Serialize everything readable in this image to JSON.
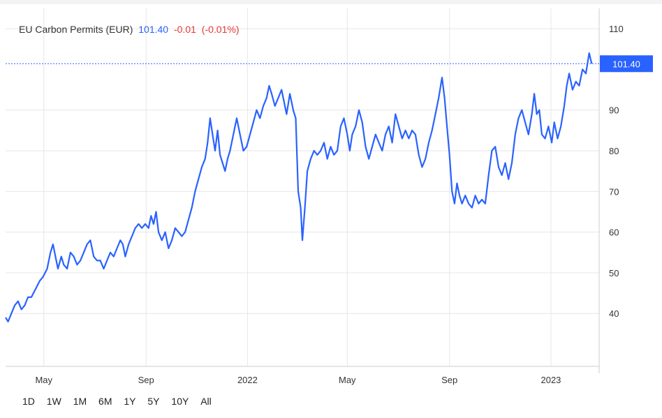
{
  "header": {
    "name": "EU Carbon Permits (EUR)",
    "price": "101.40",
    "change": "-0.01",
    "change_pct": "(-0.01%)"
  },
  "range_buttons": [
    "1D",
    "1W",
    "1M",
    "6M",
    "1Y",
    "5Y",
    "10Y",
    "All"
  ],
  "colors": {
    "line": "#2962ff",
    "price_tag_bg": "#2962ff",
    "change_negative": "#e53935",
    "grid": "#e6e6e6",
    "axis_text": "#333333"
  },
  "chart_data": {
    "type": "line",
    "title": "EU Carbon Permits (EUR)",
    "last_value": 101.4,
    "last_value_label": "101.40",
    "y_ticks": [
      40,
      50,
      60,
      70,
      80,
      90,
      110
    ],
    "y_tick_labels": [
      "40",
      "50",
      "60",
      "70",
      "80",
      "90",
      "110"
    ],
    "ylim": [
      27,
      115
    ],
    "xlim": [
      "2021-03-16",
      "2023-02-28"
    ],
    "x_ticks": [
      "2021-05-01",
      "2021-09-01",
      "2022-01-01",
      "2022-05-01",
      "2022-09-01",
      "2023-01-01"
    ],
    "x_tick_labels": [
      "May",
      "Sep",
      "2022",
      "May",
      "Sep",
      "2023"
    ],
    "grid": true,
    "series": [
      {
        "points": [
          [
            "2021-03-16",
            39
          ],
          [
            "2021-03-19",
            38
          ],
          [
            "2021-03-23",
            40
          ],
          [
            "2021-03-27",
            42
          ],
          [
            "2021-03-31",
            43
          ],
          [
            "2021-04-04",
            41
          ],
          [
            "2021-04-08",
            42
          ],
          [
            "2021-04-12",
            44
          ],
          [
            "2021-04-16",
            44
          ],
          [
            "2021-04-21",
            46
          ],
          [
            "2021-04-26",
            48
          ],
          [
            "2021-04-30",
            49
          ],
          [
            "2021-05-05",
            51
          ],
          [
            "2021-05-09",
            55
          ],
          [
            "2021-05-12",
            57
          ],
          [
            "2021-05-15",
            54
          ],
          [
            "2021-05-18",
            51
          ],
          [
            "2021-05-22",
            54
          ],
          [
            "2021-05-25",
            52
          ],
          [
            "2021-05-29",
            51
          ],
          [
            "2021-06-02",
            55
          ],
          [
            "2021-06-06",
            54
          ],
          [
            "2021-06-10",
            52
          ],
          [
            "2021-06-14",
            53
          ],
          [
            "2021-06-18",
            55
          ],
          [
            "2021-06-22",
            57
          ],
          [
            "2021-06-26",
            58
          ],
          [
            "2021-06-30",
            54
          ],
          [
            "2021-07-04",
            53
          ],
          [
            "2021-07-08",
            53
          ],
          [
            "2021-07-12",
            51
          ],
          [
            "2021-07-16",
            53
          ],
          [
            "2021-07-20",
            55
          ],
          [
            "2021-07-24",
            54
          ],
          [
            "2021-07-28",
            56
          ],
          [
            "2021-08-01",
            58
          ],
          [
            "2021-08-04",
            57
          ],
          [
            "2021-08-07",
            54
          ],
          [
            "2021-08-11",
            57
          ],
          [
            "2021-08-15",
            59
          ],
          [
            "2021-08-19",
            61
          ],
          [
            "2021-08-23",
            62
          ],
          [
            "2021-08-27",
            61
          ],
          [
            "2021-08-31",
            62
          ],
          [
            "2021-09-04",
            61
          ],
          [
            "2021-09-07",
            64
          ],
          [
            "2021-09-10",
            62
          ],
          [
            "2021-09-13",
            65
          ],
          [
            "2021-09-16",
            60
          ],
          [
            "2021-09-20",
            58
          ],
          [
            "2021-09-24",
            60
          ],
          [
            "2021-09-28",
            56
          ],
          [
            "2021-10-02",
            58
          ],
          [
            "2021-10-06",
            61
          ],
          [
            "2021-10-10",
            60
          ],
          [
            "2021-10-14",
            59
          ],
          [
            "2021-10-18",
            60
          ],
          [
            "2021-10-22",
            63
          ],
          [
            "2021-10-26",
            66
          ],
          [
            "2021-10-30",
            70
          ],
          [
            "2021-11-03",
            73
          ],
          [
            "2021-11-07",
            76
          ],
          [
            "2021-11-11",
            78
          ],
          [
            "2021-11-14",
            82
          ],
          [
            "2021-11-17",
            88
          ],
          [
            "2021-11-20",
            84
          ],
          [
            "2021-11-23",
            80
          ],
          [
            "2021-11-26",
            85
          ],
          [
            "2021-11-29",
            79
          ],
          [
            "2021-12-02",
            77
          ],
          [
            "2021-12-05",
            75
          ],
          [
            "2021-12-08",
            78
          ],
          [
            "2021-12-11",
            80
          ],
          [
            "2021-12-15",
            84
          ],
          [
            "2021-12-19",
            88
          ],
          [
            "2021-12-23",
            84
          ],
          [
            "2021-12-27",
            80
          ],
          [
            "2021-12-31",
            81
          ],
          [
            "2022-01-04",
            84
          ],
          [
            "2022-01-08",
            87
          ],
          [
            "2022-01-12",
            90
          ],
          [
            "2022-01-16",
            88
          ],
          [
            "2022-01-20",
            91
          ],
          [
            "2022-01-24",
            93
          ],
          [
            "2022-01-27",
            96
          ],
          [
            "2022-01-30",
            94
          ],
          [
            "2022-02-03",
            91
          ],
          [
            "2022-02-07",
            93
          ],
          [
            "2022-02-11",
            95
          ],
          [
            "2022-02-14",
            92
          ],
          [
            "2022-02-17",
            89
          ],
          [
            "2022-02-21",
            94
          ],
          [
            "2022-02-25",
            90
          ],
          [
            "2022-02-28",
            88
          ],
          [
            "2022-03-03",
            70
          ],
          [
            "2022-03-06",
            66
          ],
          [
            "2022-03-08",
            58
          ],
          [
            "2022-03-11",
            66
          ],
          [
            "2022-03-14",
            75
          ],
          [
            "2022-03-18",
            78
          ],
          [
            "2022-03-22",
            80
          ],
          [
            "2022-03-26",
            79
          ],
          [
            "2022-03-30",
            80
          ],
          [
            "2022-04-03",
            82
          ],
          [
            "2022-04-07",
            78
          ],
          [
            "2022-04-11",
            81
          ],
          [
            "2022-04-15",
            79
          ],
          [
            "2022-04-19",
            80
          ],
          [
            "2022-04-23",
            86
          ],
          [
            "2022-04-27",
            88
          ],
          [
            "2022-05-01",
            84
          ],
          [
            "2022-05-04",
            80
          ],
          [
            "2022-05-07",
            84
          ],
          [
            "2022-05-11",
            86
          ],
          [
            "2022-05-15",
            90
          ],
          [
            "2022-05-19",
            87
          ],
          [
            "2022-05-23",
            81
          ],
          [
            "2022-05-27",
            78
          ],
          [
            "2022-05-31",
            81
          ],
          [
            "2022-06-04",
            84
          ],
          [
            "2022-06-08",
            82
          ],
          [
            "2022-06-12",
            80
          ],
          [
            "2022-06-16",
            84
          ],
          [
            "2022-06-20",
            86
          ],
          [
            "2022-06-24",
            82
          ],
          [
            "2022-06-28",
            89
          ],
          [
            "2022-07-02",
            86
          ],
          [
            "2022-07-06",
            83
          ],
          [
            "2022-07-10",
            85
          ],
          [
            "2022-07-14",
            83
          ],
          [
            "2022-07-18",
            85
          ],
          [
            "2022-07-22",
            84
          ],
          [
            "2022-07-26",
            79
          ],
          [
            "2022-07-30",
            76
          ],
          [
            "2022-08-03",
            78
          ],
          [
            "2022-08-07",
            82
          ],
          [
            "2022-08-11",
            85
          ],
          [
            "2022-08-15",
            89
          ],
          [
            "2022-08-19",
            93
          ],
          [
            "2022-08-23",
            98
          ],
          [
            "2022-08-26",
            93
          ],
          [
            "2022-08-29",
            86
          ],
          [
            "2022-09-01",
            79
          ],
          [
            "2022-09-04",
            70
          ],
          [
            "2022-09-07",
            67
          ],
          [
            "2022-09-10",
            72
          ],
          [
            "2022-09-13",
            69
          ],
          [
            "2022-09-16",
            67
          ],
          [
            "2022-09-20",
            69
          ],
          [
            "2022-09-24",
            67
          ],
          [
            "2022-09-28",
            66
          ],
          [
            "2022-10-02",
            69
          ],
          [
            "2022-10-06",
            67
          ],
          [
            "2022-10-10",
            68
          ],
          [
            "2022-10-14",
            67
          ],
          [
            "2022-10-18",
            74
          ],
          [
            "2022-10-22",
            80
          ],
          [
            "2022-10-26",
            81
          ],
          [
            "2022-10-30",
            76
          ],
          [
            "2022-11-03",
            74
          ],
          [
            "2022-11-07",
            77
          ],
          [
            "2022-11-11",
            73
          ],
          [
            "2022-11-15",
            77
          ],
          [
            "2022-11-19",
            84
          ],
          [
            "2022-11-23",
            88
          ],
          [
            "2022-11-27",
            90
          ],
          [
            "2022-12-01",
            87
          ],
          [
            "2022-12-05",
            84
          ],
          [
            "2022-12-09",
            89
          ],
          [
            "2022-12-12",
            94
          ],
          [
            "2022-12-15",
            89
          ],
          [
            "2022-12-18",
            90
          ],
          [
            "2022-12-21",
            84
          ],
          [
            "2022-12-25",
            83
          ],
          [
            "2022-12-29",
            86
          ],
          [
            "2023-01-02",
            82
          ],
          [
            "2023-01-05",
            87
          ],
          [
            "2023-01-09",
            83
          ],
          [
            "2023-01-13",
            86
          ],
          [
            "2023-01-17",
            91
          ],
          [
            "2023-01-20",
            96
          ],
          [
            "2023-01-23",
            99
          ],
          [
            "2023-01-27",
            95
          ],
          [
            "2023-01-31",
            97
          ],
          [
            "2023-02-04",
            96
          ],
          [
            "2023-02-08",
            100
          ],
          [
            "2023-02-12",
            99
          ],
          [
            "2023-02-16",
            104
          ],
          [
            "2023-02-19",
            101.4
          ]
        ]
      }
    ]
  }
}
